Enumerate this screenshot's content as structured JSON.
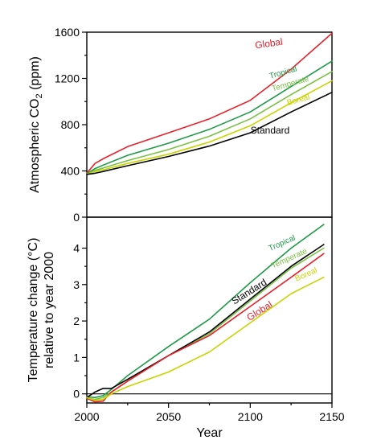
{
  "chart_data": [
    {
      "type": "line",
      "xlabel": "",
      "ylabel": "Atmospheric CO",
      "ylabel_sub": "2",
      "ylabel_tail": " (ppm)",
      "xlim": [
        2000,
        2150
      ],
      "ylim": [
        0,
        1600
      ],
      "yticks": [
        0,
        400,
        800,
        1200,
        1600
      ],
      "yticklabels": [
        "0",
        "400",
        "800",
        "1200",
        "1600"
      ],
      "x": [
        2000,
        2005,
        2010,
        2025,
        2050,
        2075,
        2100,
        2125,
        2150
      ],
      "series": [
        {
          "name": "Global",
          "color": "#e8202a",
          "values": [
            380,
            465,
            505,
            610,
            730,
            850,
            1010,
            1280,
            1590
          ]
        },
        {
          "name": "Tropical",
          "color": "#1e9a46",
          "values": [
            375,
            420,
            450,
            535,
            640,
            760,
            910,
            1130,
            1350
          ]
        },
        {
          "name": "Temperate",
          "color": "#7ac143",
          "values": [
            372,
            405,
            425,
            490,
            585,
            700,
            850,
            1060,
            1260
          ]
        },
        {
          "name": "Boreal",
          "color": "#c8d400",
          "values": [
            371,
            395,
            410,
            465,
            545,
            650,
            790,
            990,
            1180
          ]
        },
        {
          "name": "Standard",
          "color": "#000000",
          "values": [
            370,
            380,
            395,
            445,
            525,
            615,
            730,
            910,
            1080
          ]
        }
      ]
    },
    {
      "type": "line",
      "xlabel": "Year",
      "ylabel": "Temperature change (°C)",
      "ylabel2": "relative to year 2000",
      "xlim": [
        2000,
        2150
      ],
      "ylim": [
        -0.25,
        4.85
      ],
      "yticks": [
        0,
        1,
        2,
        3,
        4
      ],
      "yticklabels": [
        "0",
        "1",
        "2",
        "3",
        "4"
      ],
      "xticks": [
        2000,
        2050,
        2100,
        2150
      ],
      "xticklabels": [
        "2000",
        "2050",
        "2100",
        "2150"
      ],
      "x": [
        2000,
        2005,
        2010,
        2015,
        2025,
        2050,
        2075,
        2100,
        2125,
        2145
      ],
      "series": [
        {
          "name": "Tropical",
          "color": "#1e9a46",
          "values": [
            -0.08,
            -0.1,
            -0.05,
            0.12,
            0.5,
            1.3,
            2.05,
            3.05,
            4.0,
            4.65
          ]
        },
        {
          "name": "Temperate",
          "color": "#7ac143",
          "values": [
            -0.12,
            -0.15,
            -0.1,
            0.05,
            0.35,
            1.05,
            1.65,
            2.55,
            3.45,
            4.0
          ]
        },
        {
          "name": "Standard",
          "color": "#000000",
          "values": [
            -0.1,
            0.05,
            0.15,
            0.15,
            0.4,
            1.05,
            1.7,
            2.6,
            3.5,
            4.1
          ]
        },
        {
          "name": "Global",
          "color": "#e8202a",
          "values": [
            -0.12,
            -0.22,
            -0.2,
            0.05,
            0.35,
            1.05,
            1.6,
            2.4,
            3.2,
            3.85
          ]
        },
        {
          "name": "Boreal",
          "color": "#c8d400",
          "values": [
            -0.1,
            -0.18,
            -0.15,
            0.0,
            0.2,
            0.6,
            1.15,
            1.95,
            2.75,
            3.2
          ]
        }
      ],
      "zero_line": true
    }
  ]
}
